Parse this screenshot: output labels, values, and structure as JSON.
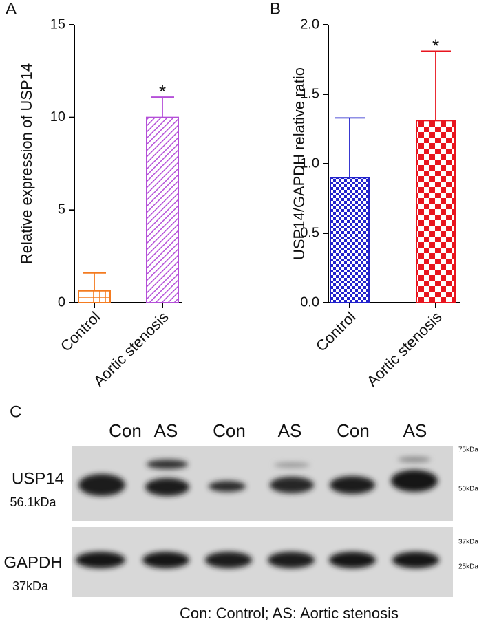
{
  "chart_data": [
    {
      "type": "bar",
      "panel": "A",
      "ylabel": "Relative expression of USP14",
      "categories": [
        "Control",
        "Aortic stenosis"
      ],
      "values": [
        0.65,
        10.0
      ],
      "errors": [
        0.95,
        1.1
      ],
      "colors": [
        "#f47b20",
        "#b44fd8"
      ],
      "fill_patterns": [
        "grid",
        "hatch"
      ],
      "significance": [
        null,
        "*"
      ],
      "ylim": [
        0,
        15
      ],
      "yticks": [
        0,
        5,
        10,
        15
      ]
    },
    {
      "type": "bar",
      "panel": "B",
      "ylabel": "USP14/GAPDH relative ratio",
      "categories": [
        "Control",
        "Aortic stenosis"
      ],
      "values": [
        0.9,
        1.31
      ],
      "errors": [
        0.43,
        0.5
      ],
      "colors": [
        "#2222cc",
        "#e8141e"
      ],
      "fill_patterns": [
        "checker-small",
        "checker-large"
      ],
      "significance": [
        null,
        "*"
      ],
      "ylim": [
        0,
        2
      ],
      "yticks": [
        {
          "value": 0,
          "label": "0.0"
        },
        0.5,
        {
          "value": 1,
          "label": "1.0"
        },
        1.5,
        {
          "value": 2,
          "label": "2.0"
        }
      ]
    }
  ],
  "blot": {
    "panel": "C",
    "lanes": [
      "Con",
      "AS",
      "Con",
      "AS",
      "Con",
      "AS"
    ],
    "rows": [
      {
        "label": "USP14",
        "size": "56.1kDa"
      },
      {
        "label": "GAPDH",
        "size": "37kDa"
      }
    ],
    "markers": [
      "75kDa",
      "50kDa",
      "37kDa",
      "25kDa"
    ],
    "caption": "Con: Control; AS: Aortic stenosis"
  }
}
